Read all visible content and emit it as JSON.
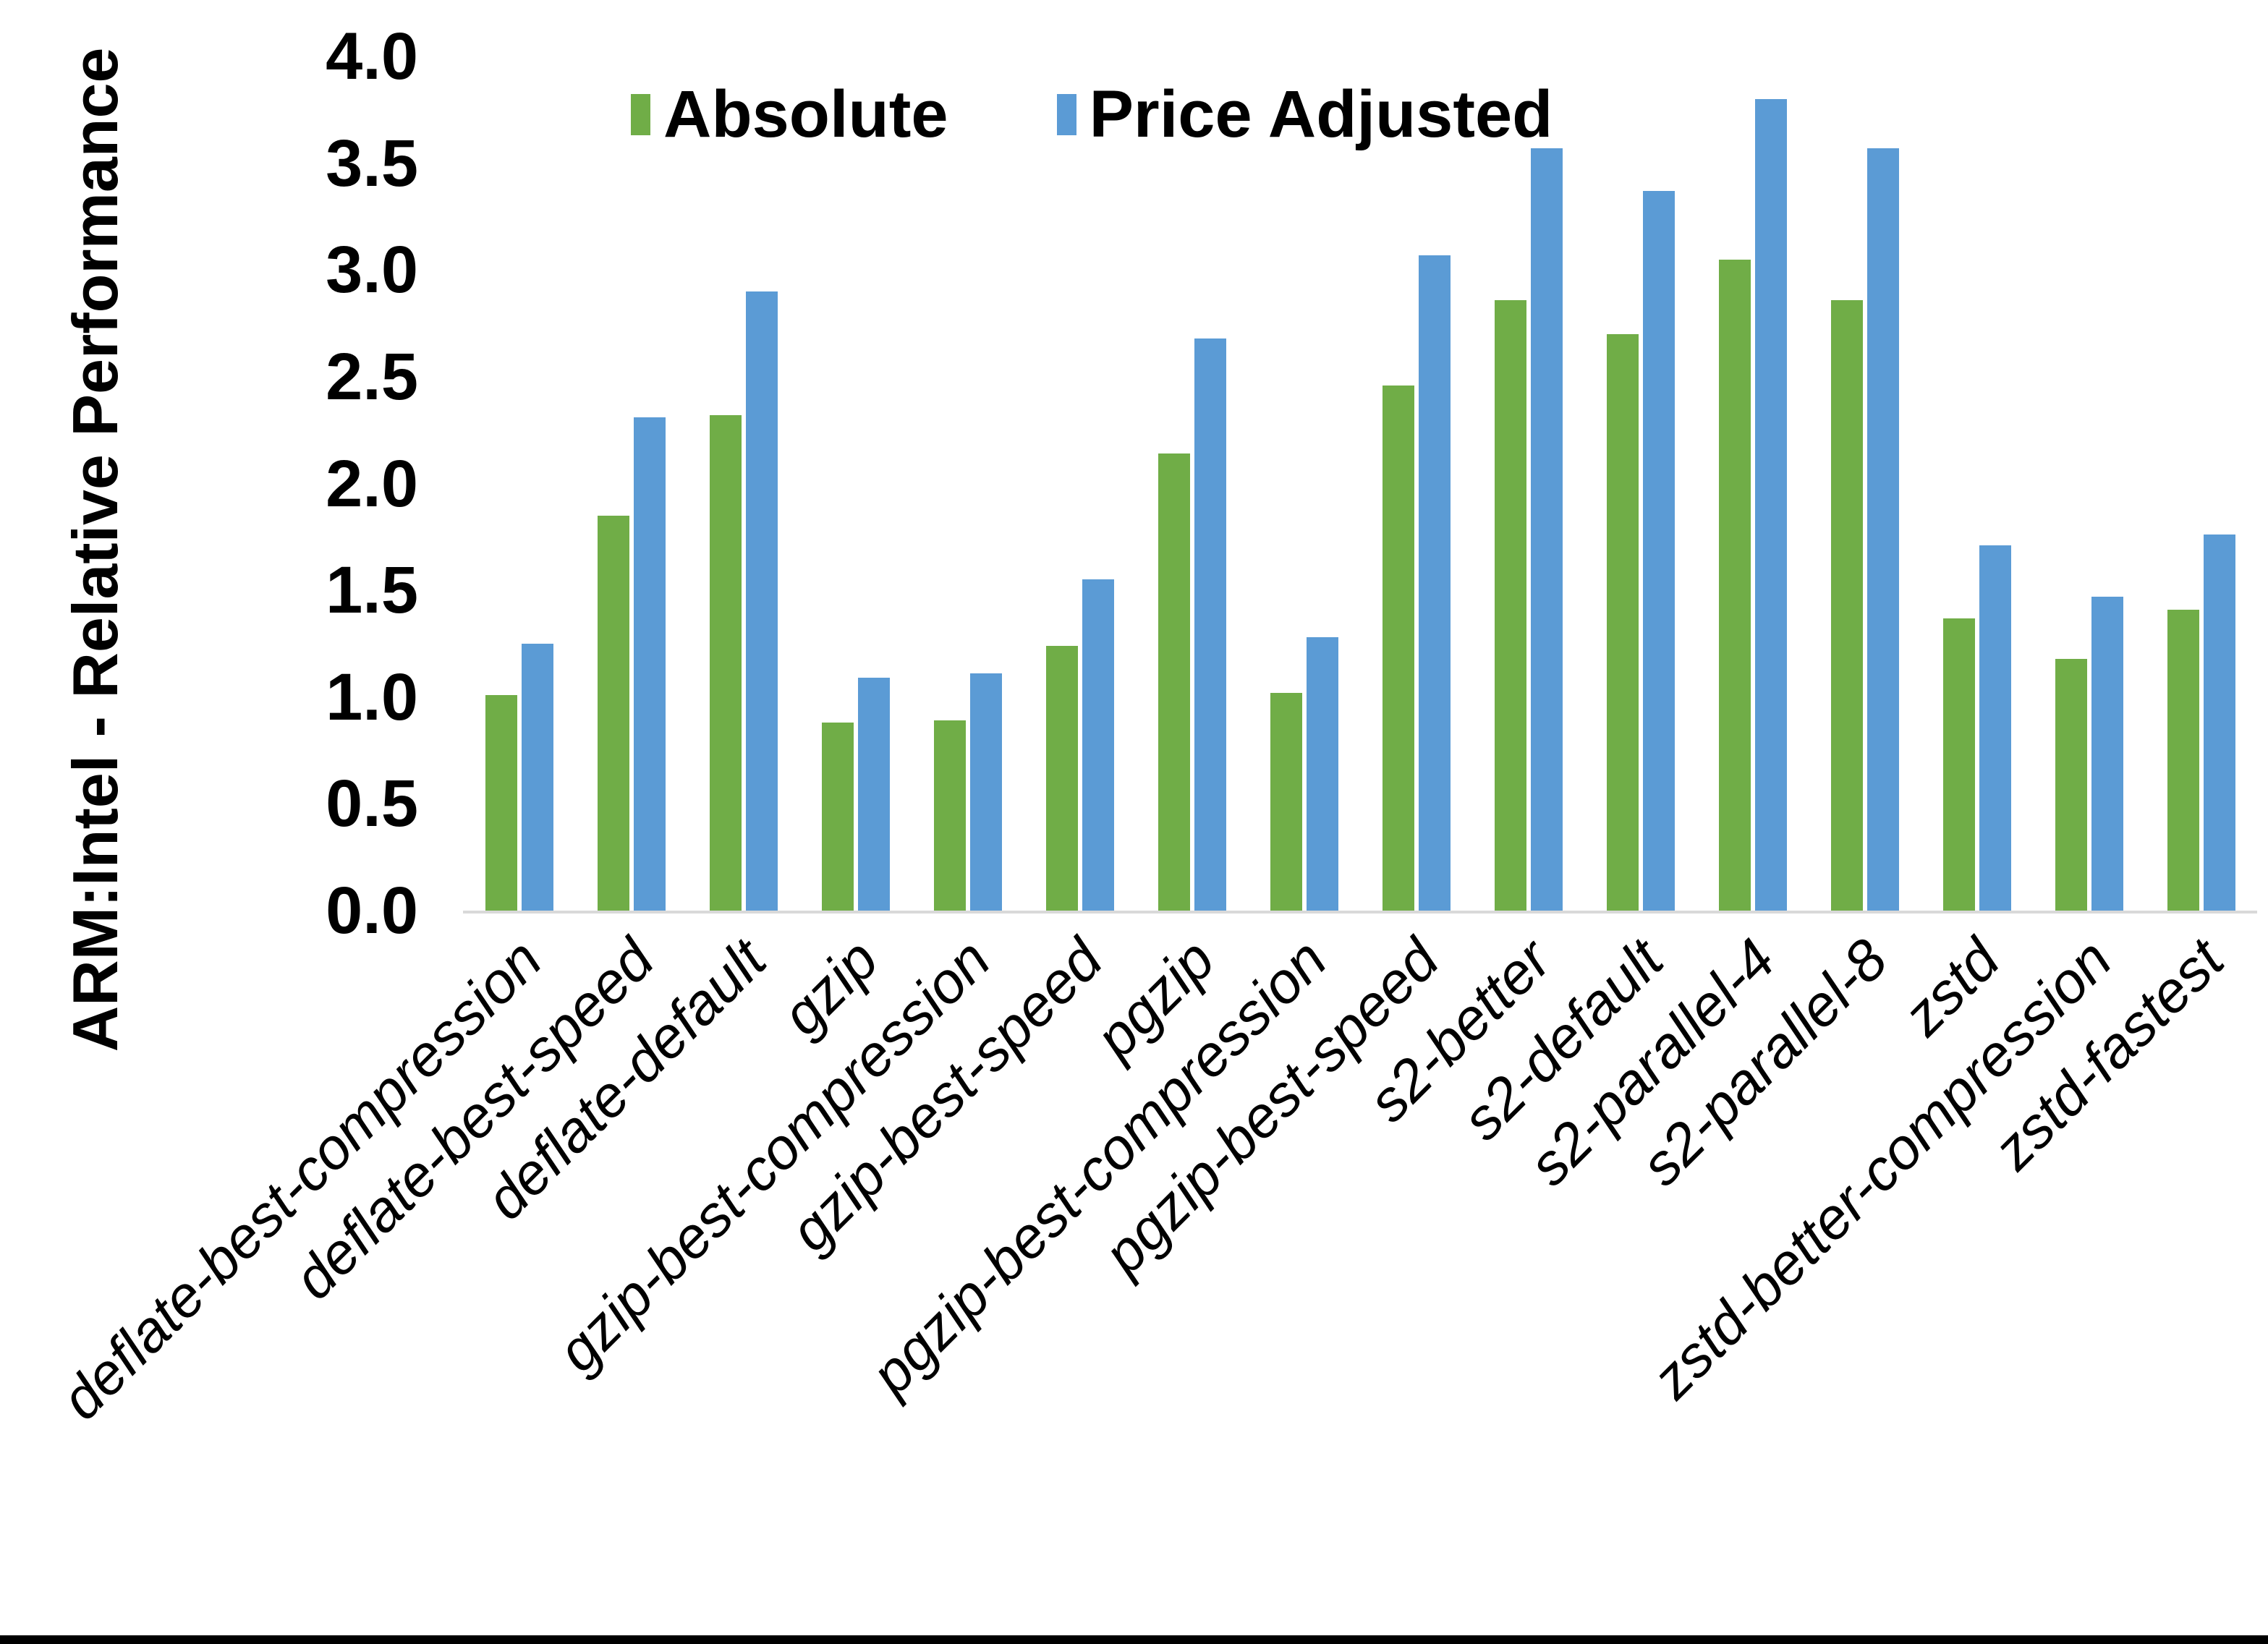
{
  "chart_data": {
    "type": "bar",
    "title": "",
    "xlabel": "",
    "ylabel": "ARM:Intel - Relative Performance",
    "ylim": [
      0,
      4
    ],
    "ytick_step": 0.5,
    "yticks": [
      "0.0",
      "0.5",
      "1.0",
      "1.5",
      "2.0",
      "2.5",
      "3.0",
      "3.5",
      "4.0"
    ],
    "grid": false,
    "legend_position": "top-center",
    "axis_line_color": "#d9d9d9",
    "categories": [
      "deflate-best-compression",
      "deflate-best-speed",
      "deflate-default",
      "gzip",
      "gzip-best-compression",
      "gzip-best-speed",
      "pgzip",
      "pgzip-best-compression",
      "pgzip-best-speed",
      "s2-better",
      "s2-default",
      "s2-parallel-4",
      "s2-parallel-8",
      "zstd",
      "zstd-better-compression",
      "zstd-fastest"
    ],
    "series": [
      {
        "name": "Absolute",
        "color": "#70AD47",
        "values": [
          1.01,
          1.85,
          2.32,
          0.88,
          0.89,
          1.24,
          2.14,
          1.02,
          2.46,
          2.86,
          2.7,
          3.05,
          2.86,
          1.37,
          1.18,
          1.41
        ]
      },
      {
        "name": "Price Adjusted",
        "color": "#5B9BD5",
        "values": [
          1.25,
          2.31,
          2.9,
          1.09,
          1.11,
          1.55,
          2.68,
          1.28,
          3.07,
          3.57,
          3.37,
          3.8,
          3.57,
          1.71,
          1.47,
          1.76
        ]
      }
    ]
  }
}
